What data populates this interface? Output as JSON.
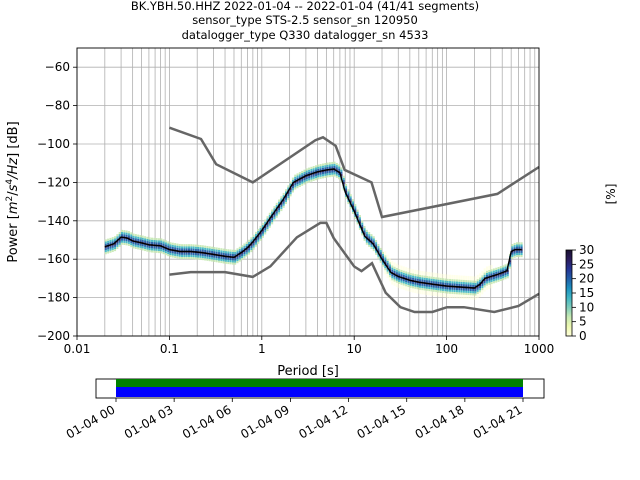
{
  "title_lines": [
    "BK.YBH.50.HHZ   2022-01-04 -- 2022-01-04  (41/41 segments)",
    "sensor_type STS-2.5 sensor_sn 120950",
    "datalogger_type Q330 datalogger_sn 4533"
  ],
  "ylabel": "Power [$m^2/s^4/Hz$] [dB]",
  "ylabel_parts": [
    "Power [",
    "m",
    "2",
    "/",
    "s",
    "4",
    "/Hz",
    "] [dB]"
  ],
  "xlabel": "Period [s]",
  "colorbar": {
    "label": "[%]",
    "ticks": [
      0,
      5,
      10,
      15,
      20,
      25,
      30
    ],
    "range": [
      0,
      30
    ],
    "colormap": [
      "#ffffd9",
      "#edf8b1",
      "#c7e9b4",
      "#7fcdbb",
      "#41b6c4",
      "#1d91c0",
      "#225ea8",
      "#253494",
      "#2b1c5c",
      "#1a1030"
    ]
  },
  "colors": {
    "noise_model": "#666666",
    "mean_line": "#000000",
    "grid": "#b0b0b0",
    "coverage_top": "#008000",
    "coverage_bottom": "#0000ff"
  },
  "chart_data": {
    "type": "heatmap",
    "x_scale": "log",
    "xlim": [
      0.01,
      1000
    ],
    "ylim": [
      -200,
      -50
    ],
    "x_ticks": [
      0.01,
      0.1,
      1,
      10,
      100,
      1000
    ],
    "x_tick_labels": [
      "0.01",
      "0.1",
      "1",
      "10",
      "100",
      "1000"
    ],
    "y_ticks": [
      -200,
      -180,
      -160,
      -140,
      -120,
      -100,
      -80,
      -60
    ],
    "y_tick_labels": [
      "−200",
      "−180",
      "−160",
      "−140",
      "−120",
      "−100",
      "−80",
      "−60"
    ],
    "grid": true,
    "nhnm": {
      "period": [
        0.1,
        0.22,
        0.32,
        0.8,
        3.8,
        4.6,
        6.3,
        7.9,
        15.4,
        20,
        354.8,
        1000
      ],
      "db": [
        -91.5,
        -97.4,
        -110.5,
        -120,
        -98,
        -96.5,
        -101,
        -113.5,
        -120,
        -138,
        -126,
        -112
      ]
    },
    "nlnm": {
      "period": [
        0.1,
        0.17,
        0.4,
        0.8,
        1.24,
        2.4,
        4.3,
        5,
        6,
        10,
        12,
        15.6,
        21.9,
        31.6,
        45,
        70,
        101,
        154,
        328,
        600,
        1000
      ],
      "db": [
        -168,
        -166.7,
        -166.7,
        -169.2,
        -163.7,
        -148.6,
        -141.1,
        -141.1,
        -149,
        -163.8,
        -166.2,
        -162.1,
        -177.5,
        -185,
        -187.5,
        -187.5,
        -185,
        -185,
        -187.5,
        -184.4,
        -178
      ]
    },
    "mean_psd": {
      "period": [
        0.02,
        0.025,
        0.03,
        0.035,
        0.04,
        0.05,
        0.06,
        0.08,
        0.1,
        0.13,
        0.17,
        0.22,
        0.3,
        0.4,
        0.5,
        0.6,
        0.7,
        0.8,
        1,
        1.3,
        1.7,
        2.2,
        3,
        4,
        5,
        6,
        7,
        8,
        10,
        13,
        16,
        20,
        25,
        30,
        40,
        50,
        70,
        100,
        140,
        200,
        230,
        260,
        300,
        350,
        400,
        450,
        500,
        550,
        600,
        650
      ],
      "db": [
        -153.5,
        -152,
        -148.5,
        -149,
        -150.5,
        -151.5,
        -152.5,
        -153,
        -155,
        -156,
        -156,
        -156.5,
        -157.5,
        -158.5,
        -159,
        -156.5,
        -154,
        -151,
        -145,
        -137,
        -129,
        -120,
        -116.5,
        -114.5,
        -113.5,
        -113,
        -115,
        -125,
        -135,
        -148,
        -152,
        -160,
        -167,
        -169,
        -171,
        -172,
        -173,
        -174,
        -174.5,
        -175,
        -173,
        -170,
        -169,
        -168,
        -167,
        -166,
        -156,
        -155,
        -155,
        -155
      ]
    },
    "coverage": {
      "start": "01-04 00",
      "end": "01-04 21",
      "tick_labels": [
        "01-04 00",
        "01-04 03",
        "01-04 06",
        "01-04 09",
        "01-04 12",
        "01-04 15",
        "01-04 18",
        "01-04 21"
      ]
    }
  }
}
